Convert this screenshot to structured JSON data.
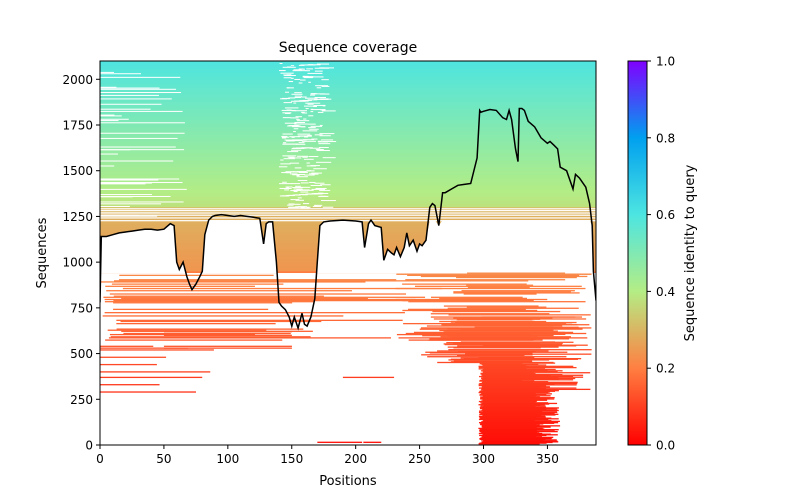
{
  "chart_data": {
    "type": "heatmap",
    "title": "Sequence coverage",
    "xlabel": "Positions",
    "ylabel": "Sequences",
    "xlim": [
      0,
      388
    ],
    "ylim": [
      0,
      2100
    ],
    "xticks": [
      0,
      50,
      100,
      150,
      200,
      250,
      300,
      350
    ],
    "yticks": [
      0,
      250,
      500,
      750,
      1000,
      1250,
      1500,
      1750,
      2000
    ],
    "grid": false,
    "colorbar": {
      "label": "Sequence identity to query",
      "colormap": "rainbow",
      "range": [
        0.0,
        1.0
      ],
      "ticks": [
        "0.0",
        "0.2",
        "0.4",
        "0.6",
        "0.8",
        "1.0"
      ],
      "stops": [
        "#ff0000",
        "#ff7f41",
        "#b4ed85",
        "#4de5e1",
        "#00a0ef",
        "#8000ff"
      ]
    },
    "identity_bands": [
      {
        "from_seq": 1300,
        "to_seq": 2100,
        "identity_low": 0.38,
        "identity_high": 0.6
      },
      {
        "from_seq": 950,
        "to_seq": 1300,
        "identity_low": 0.24,
        "identity_high": 0.3
      },
      {
        "from_seq": 0,
        "to_seq": 950,
        "identity_low": 0.03,
        "identity_high": 0.2
      }
    ],
    "coverage_line": {
      "name": "coverage",
      "color": "#000000",
      "x": [
        0,
        1,
        5,
        10,
        15,
        20,
        25,
        30,
        35,
        40,
        45,
        50,
        55,
        58,
        60,
        62,
        65,
        68,
        70,
        72,
        75,
        78,
        80,
        82,
        85,
        88,
        90,
        95,
        100,
        105,
        110,
        115,
        120,
        125,
        128,
        130,
        132,
        135,
        138,
        140,
        142,
        145,
        148,
        150,
        152,
        155,
        158,
        160,
        162,
        165,
        168,
        170,
        172,
        175,
        180,
        190,
        200,
        205,
        207,
        210,
        212,
        215,
        220,
        222,
        225,
        228,
        230,
        232,
        235,
        238,
        240,
        242,
        245,
        248,
        250,
        252,
        255,
        258,
        260,
        262,
        265,
        268,
        270,
        275,
        280,
        285,
        290,
        295,
        297,
        298,
        300,
        305,
        310,
        315,
        318,
        320,
        322,
        325,
        327,
        328,
        330,
        332,
        335,
        340,
        345,
        350,
        352,
        355,
        358,
        360,
        365,
        370,
        372,
        375,
        380,
        383,
        385,
        386,
        388
      ],
      "y": [
        780,
        1140,
        1140,
        1150,
        1160,
        1165,
        1170,
        1175,
        1180,
        1180,
        1175,
        1180,
        1210,
        1200,
        1000,
        960,
        1000,
        920,
        880,
        850,
        880,
        920,
        950,
        1150,
        1230,
        1250,
        1255,
        1260,
        1255,
        1250,
        1255,
        1250,
        1245,
        1240,
        1100,
        1210,
        1220,
        1220,
        1000,
        780,
        760,
        740,
        700,
        650,
        700,
        640,
        720,
        660,
        650,
        700,
        800,
        1000,
        1200,
        1220,
        1225,
        1230,
        1225,
        1220,
        1080,
        1210,
        1230,
        1200,
        1190,
        1010,
        1070,
        1050,
        1040,
        1080,
        1030,
        1080,
        1160,
        1090,
        1120,
        1060,
        1100,
        1090,
        1120,
        1300,
        1320,
        1310,
        1200,
        1380,
        1380,
        1400,
        1420,
        1425,
        1430,
        1570,
        1830,
        1820,
        1825,
        1835,
        1830,
        1790,
        1780,
        1830,
        1780,
        1620,
        1550,
        1840,
        1840,
        1830,
        1770,
        1740,
        1680,
        1650,
        1660,
        1640,
        1620,
        1520,
        1500,
        1400,
        1480,
        1460,
        1410,
        1320,
        1200,
        950,
        790
      ]
    }
  }
}
